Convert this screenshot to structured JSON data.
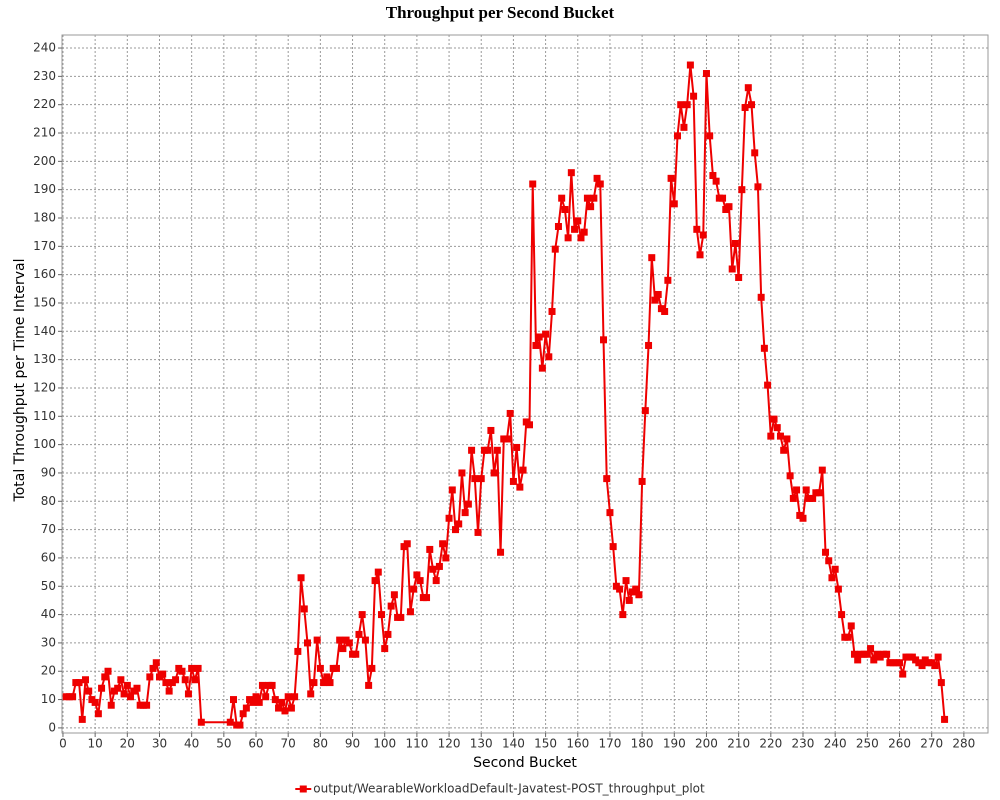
{
  "chart_data": {
    "type": "line",
    "title": "Throughput per Second Bucket",
    "x_label": "Second Bucket",
    "y_label": "Total Throughput per Time Interval",
    "xlim": [
      -0.3,
      287.5
    ],
    "ylim": [
      -1.8,
      244.6
    ],
    "xticks": [
      0,
      10,
      20,
      30,
      40,
      50,
      60,
      70,
      80,
      90,
      100,
      110,
      120,
      130,
      140,
      150,
      160,
      170,
      180,
      190,
      200,
      210,
      220,
      230,
      240,
      250,
      260,
      270,
      280
    ],
    "yticks": [
      0,
      10,
      20,
      30,
      40,
      50,
      60,
      70,
      80,
      90,
      100,
      110,
      120,
      130,
      140,
      150,
      160,
      170,
      180,
      190,
      200,
      210,
      220,
      230,
      240
    ],
    "grid": true,
    "legend": "bottom",
    "x": [
      1,
      2,
      3,
      4,
      5,
      6,
      7,
      8,
      9,
      10,
      11,
      12,
      13,
      14,
      15,
      16,
      17,
      18,
      19,
      20,
      21,
      22,
      23,
      24,
      25,
      26,
      27,
      28,
      29,
      30,
      31,
      32,
      33,
      34,
      35,
      36,
      37,
      38,
      39,
      40,
      41,
      42,
      43,
      52,
      53,
      54,
      55,
      56,
      57,
      58,
      59,
      60,
      61,
      62,
      63,
      64,
      65,
      66,
      67,
      68,
      69,
      70,
      71,
      72,
      73,
      74,
      75,
      76,
      77,
      78,
      79,
      80,
      81,
      82,
      83,
      84,
      85,
      86,
      87,
      88,
      89,
      90,
      91,
      92,
      93,
      94,
      95,
      96,
      97,
      98,
      99,
      100,
      101,
      102,
      103,
      104,
      105,
      106,
      107,
      108,
      109,
      110,
      111,
      112,
      113,
      114,
      115,
      116,
      117,
      118,
      119,
      120,
      121,
      122,
      123,
      124,
      125,
      126,
      127,
      128,
      129,
      130,
      131,
      132,
      133,
      134,
      135,
      136,
      137,
      138,
      139,
      140,
      141,
      142,
      143,
      144,
      145,
      146,
      147,
      148,
      149,
      150,
      151,
      152,
      153,
      154,
      155,
      156,
      157,
      158,
      159,
      160,
      161,
      162,
      163,
      164,
      165,
      166,
      167,
      168,
      169,
      170,
      171,
      172,
      173,
      174,
      175,
      176,
      177,
      178,
      179,
      180,
      181,
      182,
      183,
      184,
      185,
      186,
      187,
      188,
      189,
      190,
      191,
      192,
      193,
      194,
      195,
      196,
      197,
      198,
      199,
      200,
      201,
      202,
      203,
      204,
      205,
      206,
      207,
      208,
      209,
      210,
      211,
      212,
      213,
      214,
      215,
      216,
      217,
      218,
      219,
      220,
      221,
      222,
      223,
      224,
      225,
      226,
      227,
      228,
      229,
      230,
      231,
      232,
      233,
      234,
      235,
      236,
      237,
      238,
      239,
      240,
      241,
      242,
      243,
      244,
      245,
      246,
      247,
      248,
      249,
      250,
      251,
      252,
      253,
      254,
      255,
      256,
      257,
      258,
      259,
      260,
      261,
      262,
      263,
      264,
      265,
      266,
      267,
      268,
      269,
      270,
      271,
      272,
      273,
      274
    ],
    "series": [
      {
        "name": "output/WearableWorkloadDefault-Javatest-POST_throughput_plot",
        "color": "#ee0000",
        "values": [
          11,
          11,
          11,
          16,
          16,
          3,
          17,
          13,
          10,
          9,
          5,
          14,
          18,
          20,
          8,
          13,
          14,
          17,
          12,
          15,
          11,
          13,
          14,
          8,
          8,
          8,
          18,
          21,
          23,
          18,
          19,
          16,
          13,
          16,
          17,
          21,
          20,
          17,
          12,
          21,
          17,
          21,
          2,
          2,
          10,
          1,
          1,
          5,
          7,
          10,
          9,
          11,
          9,
          15,
          11,
          15,
          15,
          10,
          7,
          9,
          6,
          11,
          7,
          11,
          27,
          53,
          42,
          30,
          12,
          16,
          31,
          21,
          16,
          18,
          16,
          21,
          21,
          31,
          28,
          31,
          30,
          26,
          26,
          33,
          40,
          31,
          15,
          21,
          52,
          55,
          40,
          28,
          33,
          43,
          47,
          39,
          39,
          64,
          65,
          41,
          49,
          54,
          52,
          46,
          46,
          63,
          56,
          52,
          57,
          65,
          60,
          74,
          84,
          70,
          72,
          90,
          76,
          79,
          98,
          88,
          69,
          88,
          98,
          98,
          105,
          90,
          98,
          62,
          102,
          102,
          111,
          87,
          99,
          85,
          91,
          108,
          107,
          192,
          135,
          138,
          127,
          139,
          131,
          147,
          169,
          177,
          187,
          183,
          173,
          196,
          176,
          179,
          173,
          175,
          187,
          184,
          187,
          194,
          192,
          137,
          88,
          76,
          64,
          50,
          49,
          40,
          52,
          45,
          48,
          49,
          47,
          87,
          112,
          135,
          166,
          151,
          153,
          148,
          147,
          158,
          194,
          185,
          209,
          220,
          212,
          220,
          234,
          223,
          176,
          167,
          174,
          231,
          209,
          195,
          193,
          187,
          187,
          183,
          184,
          162,
          171,
          159,
          190,
          219,
          226,
          220,
          203,
          191,
          152,
          134,
          121,
          103,
          109,
          106,
          103,
          98,
          102,
          89,
          81,
          84,
          75,
          74,
          84,
          81,
          81,
          83,
          83,
          91,
          62,
          59,
          53,
          56,
          49,
          40,
          32,
          32,
          36,
          26,
          24,
          26,
          26,
          26,
          28,
          24,
          26,
          25,
          26,
          26,
          23,
          23,
          23,
          23,
          19,
          25,
          25,
          25,
          24,
          23,
          22,
          24,
          23,
          23,
          22,
          25,
          16,
          3
        ]
      }
    ]
  }
}
